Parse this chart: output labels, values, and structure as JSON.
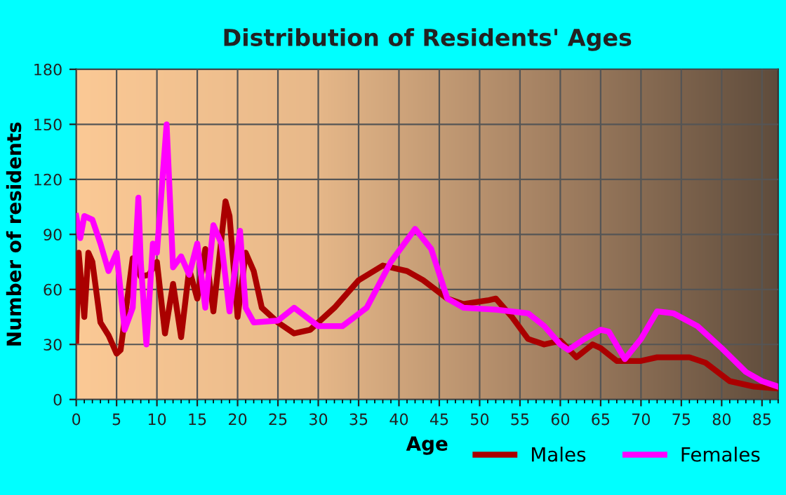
{
  "chart_data": {
    "type": "line",
    "title": "Distribution of Residents' Ages",
    "xlabel": "Age",
    "ylabel": "Number of residents",
    "xlim": [
      0,
      87
    ],
    "xticks": [
      0,
      5,
      10,
      15,
      20,
      25,
      30,
      35,
      40,
      45,
      50,
      55,
      60,
      65,
      70,
      75,
      80,
      85
    ],
    "ylim": [
      0,
      180
    ],
    "yticks": [
      0,
      30,
      60,
      90,
      120,
      150,
      180
    ],
    "grid": true,
    "legend": "bottom right",
    "line_style": "solid",
    "marker": "none",
    "series": [
      {
        "name": "Males",
        "color": "#aa0000",
        "x": [
          0,
          0.3,
          1,
          1.5,
          2,
          3,
          4,
          5,
          5.5,
          7,
          8,
          9,
          10,
          11,
          12,
          13,
          14,
          15,
          16,
          17,
          18.5,
          19,
          20,
          21,
          22,
          23,
          25,
          27,
          29,
          32,
          35,
          38,
          41,
          43,
          46,
          48,
          51,
          52,
          54,
          56,
          58,
          60,
          62,
          64,
          65,
          67,
          70,
          72,
          76,
          78,
          81,
          84,
          87
        ],
        "values": [
          32,
          80,
          45,
          80,
          75,
          42,
          35,
          25,
          27,
          77,
          67,
          68,
          75,
          36,
          63,
          34,
          71,
          55,
          82,
          48,
          108,
          100,
          45,
          80,
          70,
          50,
          42,
          36,
          38,
          50,
          65,
          73,
          70,
          65,
          55,
          52,
          54,
          55,
          45,
          33,
          30,
          32,
          23,
          30,
          28,
          21,
          21,
          23,
          23,
          20,
          10,
          7,
          6
        ]
      },
      {
        "name": "Females",
        "color": "#ff00ff",
        "x": [
          0,
          0.5,
          1,
          2,
          3,
          4,
          5,
          6,
          7,
          7.7,
          8,
          8.7,
          9.5,
          10,
          11.2,
          12,
          13,
          14,
          15,
          16,
          17,
          18,
          19,
          20.3,
          21,
          22,
          25,
          27,
          30,
          33,
          36,
          39,
          42,
          44,
          46,
          48,
          52,
          56,
          58,
          60,
          61,
          63,
          65,
          66,
          68,
          70,
          72,
          74,
          77,
          80,
          83,
          85,
          87
        ],
        "values": [
          100,
          88,
          100,
          98,
          85,
          70,
          80,
          38,
          50,
          110,
          75,
          30,
          85,
          80,
          150,
          72,
          78,
          68,
          85,
          50,
          95,
          85,
          48,
          92,
          50,
          42,
          43,
          50,
          40,
          40,
          50,
          75,
          93,
          82,
          55,
          50,
          49,
          47,
          40,
          30,
          27,
          33,
          38,
          37,
          22,
          33,
          48,
          47,
          40,
          28,
          15,
          10,
          7
        ]
      }
    ]
  }
}
